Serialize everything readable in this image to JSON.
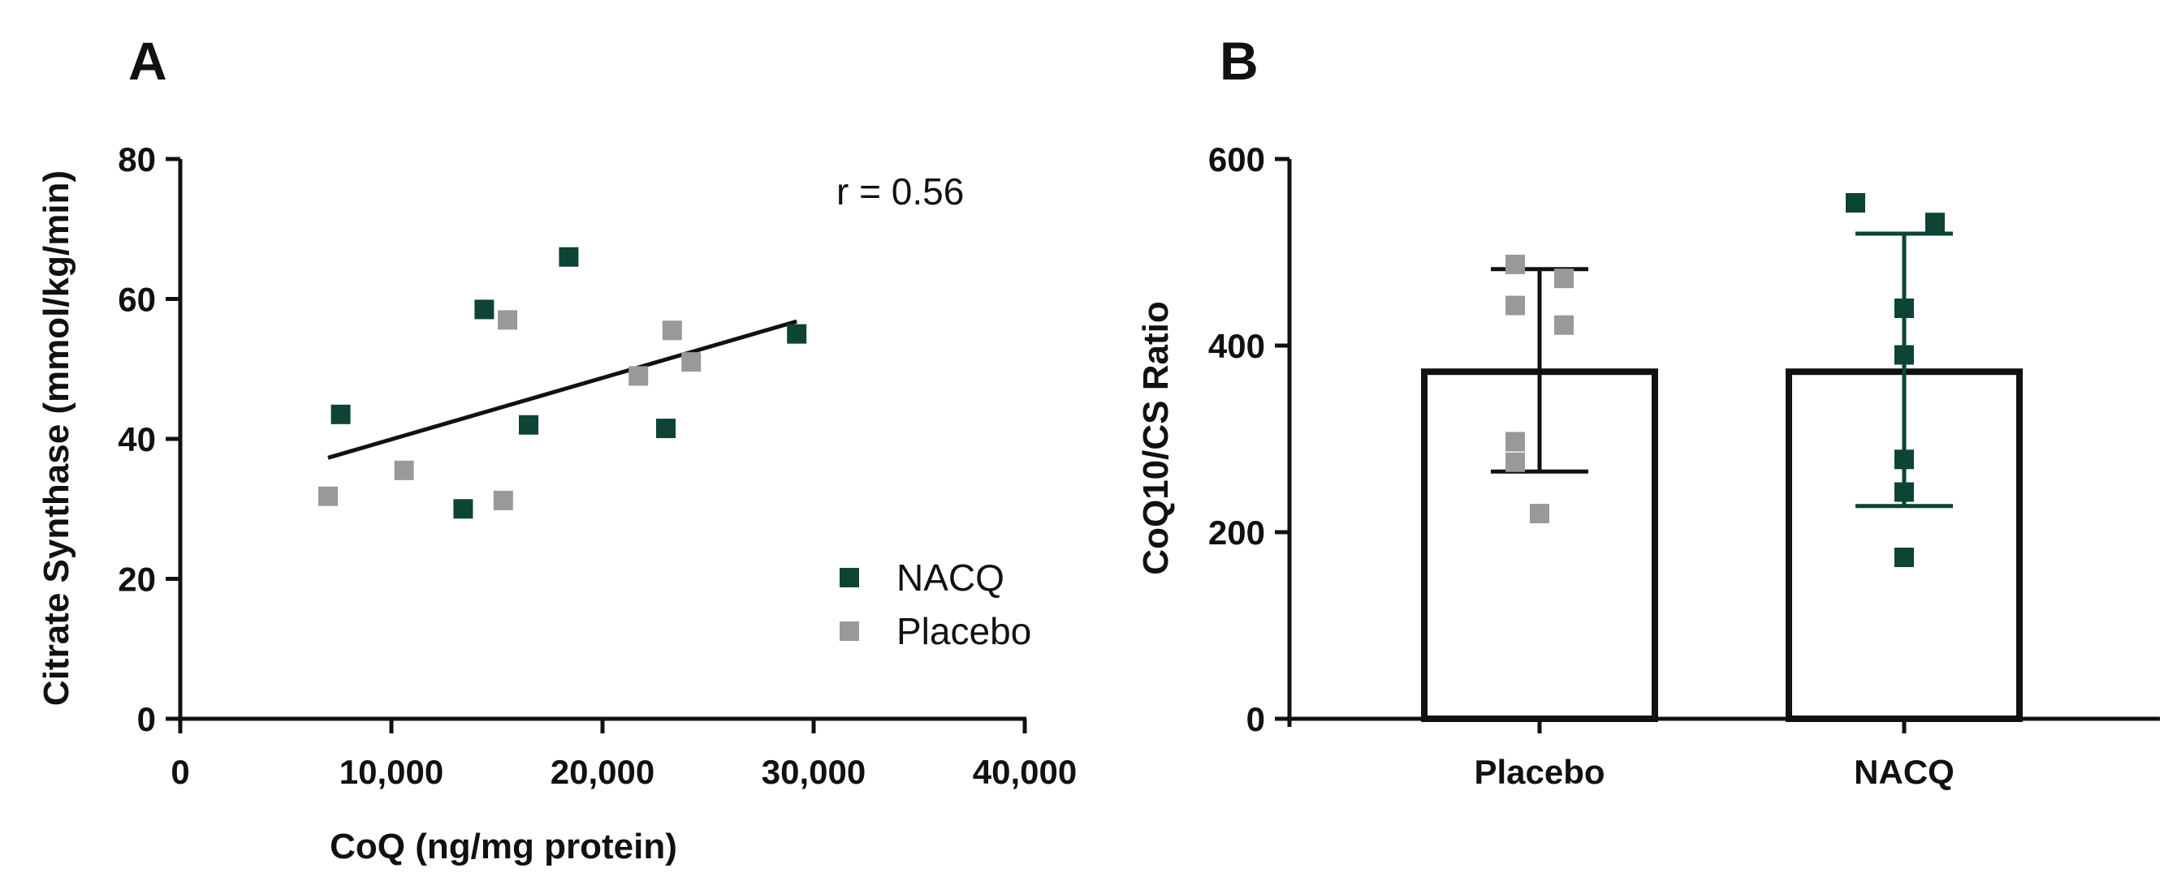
{
  "chart_data": [
    {
      "panel": "A",
      "type": "scatter",
      "xlabel": "CoQ (ng/mg protein)",
      "ylabel": "Citrate Synthase (mmol/kg/min)",
      "xlim": [
        0,
        40000
      ],
      "ylim": [
        0,
        80
      ],
      "x_ticks": [
        0,
        10000,
        20000,
        30000,
        40000
      ],
      "x_tick_labels": [
        "0",
        "10,000",
        "20,000",
        "30,000",
        "40,000"
      ],
      "y_ticks": [
        0,
        20,
        40,
        60,
        80
      ],
      "y_tick_labels": [
        "0",
        "20",
        "40",
        "60",
        "80"
      ],
      "grid": false,
      "legend_position": "bottom-right",
      "annotation": "r = 0.56",
      "series": [
        {
          "name": "NACQ",
          "color": "#0d4436",
          "points": [
            {
              "x": 7600,
              "y": 43.5
            },
            {
              "x": 13400,
              "y": 30
            },
            {
              "x": 14400,
              "y": 58.5
            },
            {
              "x": 16500,
              "y": 42
            },
            {
              "x": 18400,
              "y": 66
            },
            {
              "x": 23000,
              "y": 41.5
            },
            {
              "x": 29200,
              "y": 55
            }
          ]
        },
        {
          "name": "Placebo",
          "color": "#999999",
          "points": [
            {
              "x": 7000,
              "y": 31.8
            },
            {
              "x": 10600,
              "y": 35.5
            },
            {
              "x": 15300,
              "y": 31.2
            },
            {
              "x": 15500,
              "y": 57
            },
            {
              "x": 21700,
              "y": 49
            },
            {
              "x": 23300,
              "y": 55.5
            },
            {
              "x": 24200,
              "y": 51
            }
          ]
        }
      ],
      "regression_line": {
        "x": [
          7000,
          29200
        ],
        "y": [
          37.3,
          56.8
        ]
      }
    },
    {
      "panel": "B",
      "type": "bar",
      "categories": [
        "Placebo",
        "NACQ"
      ],
      "values": [
        372,
        372
      ],
      "error_low": [
        265,
        228
      ],
      "error_high": [
        482,
        520
      ],
      "ylabel": "CoQ10/CS  Ratio",
      "xlabel": "",
      "ylim": [
        0,
        600
      ],
      "y_ticks": [
        0,
        200,
        400,
        600
      ],
      "y_tick_labels": [
        "0",
        "200",
        "400",
        "600"
      ],
      "grid": false,
      "point_colors": [
        "#999999",
        "#0d4436"
      ],
      "points": [
        [
          487,
          472,
          443,
          422,
          297,
          275,
          220
        ],
        [
          553,
          532,
          440,
          390,
          278,
          243,
          173
        ]
      ]
    }
  ]
}
